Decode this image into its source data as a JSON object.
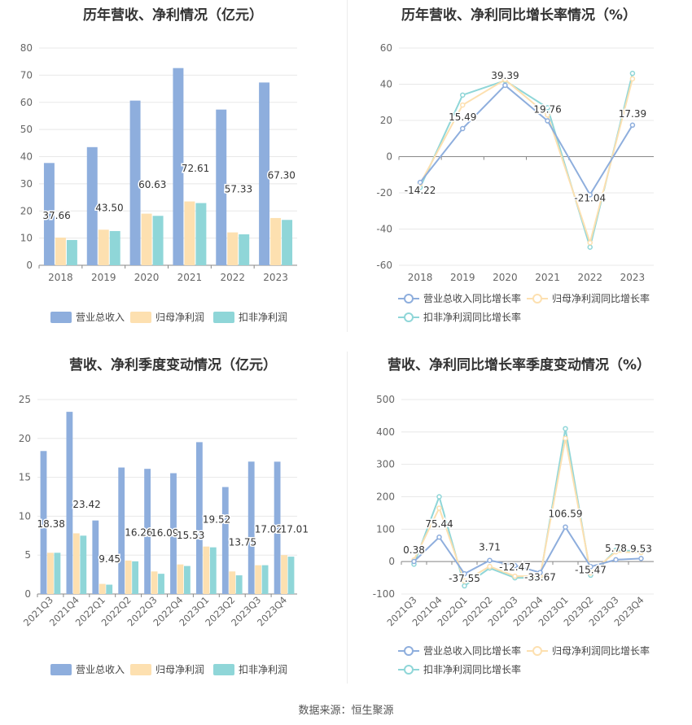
{
  "source_label": "数据来源：恒生聚源",
  "colors": {
    "revenue": "#8eaedd",
    "net_profit": "#fde0b0",
    "deducted_profit": "#8fd6d8",
    "revenue_line": "#8eaedd",
    "net_line": "#fde0b0",
    "deducted_line": "#8fd6d8",
    "axis": "#999999",
    "grid": "#e8e8e8",
    "text": "#666666"
  },
  "chart_data": [
    {
      "id": "annual_revenue_profit",
      "type": "bar",
      "title": "历年营收、净利情况（亿元）",
      "categories": [
        "2018",
        "2019",
        "2020",
        "2021",
        "2022",
        "2023"
      ],
      "ylim": [
        0,
        80
      ],
      "yticks": [
        0,
        10,
        20,
        30,
        40,
        50,
        60,
        70,
        80
      ],
      "series": [
        {
          "name": "营业总收入",
          "values": [
            37.66,
            43.5,
            60.63,
            72.61,
            57.33,
            67.3
          ],
          "labeled": true
        },
        {
          "name": "归母净利润",
          "values": [
            10.2,
            13.1,
            19.0,
            23.5,
            12.1,
            17.4
          ],
          "labeled": false
        },
        {
          "name": "扣非净利润",
          "values": [
            9.3,
            12.6,
            18.2,
            22.9,
            11.4,
            16.7
          ],
          "labeled": false
        }
      ],
      "data_labels": [
        "37.66",
        "43.50",
        "60.63",
        "72.61",
        "57.33",
        "67.30"
      ]
    },
    {
      "id": "annual_growth",
      "type": "line",
      "title": "历年营收、净利同比增长率情况（%）",
      "categories": [
        "2018",
        "2019",
        "2020",
        "2021",
        "2022",
        "2023"
      ],
      "ylim": [
        -60,
        60
      ],
      "yticks": [
        -60,
        -40,
        -20,
        0,
        20,
        40,
        60
      ],
      "series": [
        {
          "name": "营业总收入同比增长率",
          "values": [
            -14.22,
            15.49,
            39.39,
            19.76,
            -21.04,
            17.39
          ],
          "labeled": true
        },
        {
          "name": "归母净利润同比增长率",
          "values": [
            -15.0,
            28.5,
            42.5,
            23.0,
            -47.5,
            43.0
          ],
          "labeled": false
        },
        {
          "name": "扣非净利润同比增长率",
          "values": [
            -17.0,
            34.0,
            42.0,
            27.0,
            -50.0,
            46.0
          ],
          "labeled": false
        }
      ],
      "data_labels": [
        "-14.22",
        "15.49",
        "39.39",
        "19.76",
        "-21.04",
        "17.39"
      ]
    },
    {
      "id": "quarterly_revenue_profit",
      "type": "bar",
      "title": "营收、净利季度变动情况（亿元）",
      "categories": [
        "2021Q3",
        "2021Q4",
        "2022Q1",
        "2022Q2",
        "2022Q3",
        "2022Q4",
        "2023Q1",
        "2023Q2",
        "2023Q3",
        "2023Q4"
      ],
      "ylim": [
        0,
        25
      ],
      "yticks": [
        0,
        5,
        10,
        15,
        20,
        25
      ],
      "series": [
        {
          "name": "营业总收入",
          "values": [
            18.38,
            23.42,
            9.45,
            16.26,
            16.09,
            15.53,
            19.52,
            13.75,
            17.02,
            17.01
          ],
          "labeled": true
        },
        {
          "name": "归母净利润",
          "values": [
            5.3,
            7.8,
            1.3,
            4.3,
            2.9,
            3.8,
            6.1,
            2.9,
            3.7,
            5.0
          ],
          "labeled": false
        },
        {
          "name": "扣非净利润",
          "values": [
            5.3,
            7.5,
            1.2,
            4.2,
            2.6,
            3.6,
            6.0,
            2.4,
            3.7,
            4.8
          ],
          "labeled": false
        }
      ],
      "data_labels": [
        "18.38",
        "23.42",
        "9.45",
        "16.26",
        "16.09",
        "15.53",
        "19.52",
        "13.75",
        "17.02",
        "17.01"
      ]
    },
    {
      "id": "quarterly_growth",
      "type": "line",
      "title": "营收、净利同比增长率季度变动情况（%）",
      "categories": [
        "2021Q3",
        "2021Q4",
        "2022Q1",
        "2022Q2",
        "2022Q3",
        "2022Q4",
        "2023Q1",
        "2023Q2",
        "2023Q3",
        "2023Q4"
      ],
      "ylim": [
        -100,
        500
      ],
      "yticks": [
        -100,
        0,
        100,
        200,
        300,
        400,
        500
      ],
      "series": [
        {
          "name": "营业总收入同比增长率",
          "values": [
            0.38,
            75.44,
            -37.55,
            3.71,
            -12.47,
            -33.67,
            106.59,
            -15.47,
            5.78,
            9.53
          ],
          "labeled": true
        },
        {
          "name": "归母净利润同比增长率",
          "values": [
            5,
            165,
            -60,
            -15,
            -45,
            -45,
            380,
            -35,
            30,
            28
          ],
          "labeled": false
        },
        {
          "name": "扣非净利润同比增长率",
          "values": [
            -8,
            200,
            -75,
            -20,
            -50,
            -50,
            410,
            -42,
            35,
            32
          ],
          "labeled": false
        }
      ],
      "data_labels": [
        "0.38",
        "75.44",
        "-37.55",
        "3.71",
        "-12.47",
        "-33.67",
        "106.59",
        "-15.47",
        "5.78",
        "9.53"
      ]
    }
  ]
}
